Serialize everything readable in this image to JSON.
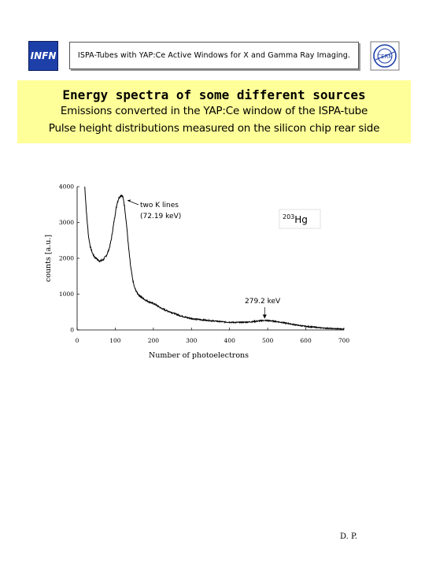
{
  "header": {
    "left_logo_text": "INFN",
    "title": "ISPA-Tubes with YAP:Ce Active Windows for X and Gamma Ray Imaging.",
    "right_logo_text": "CERN"
  },
  "banner": {
    "title": "Energy spectra of some different sources",
    "line1": "Emissions converted in the YAP:Ce window of the ISPA-tube",
    "line2": "Pulse height distributions measured on the silicon chip rear side"
  },
  "chart_data": {
    "type": "line",
    "xlabel": "Number of photoelectrons",
    "ylabel": "counts [a.u.]",
    "xlim": [
      0,
      700
    ],
    "ylim": [
      0,
      4000
    ],
    "xticks": [
      0,
      100,
      200,
      300,
      400,
      500,
      600,
      700
    ],
    "yticks": [
      0,
      1000,
      2000,
      3000,
      4000
    ],
    "grid": false,
    "source_label": {
      "sup": "203",
      "text": "Hg"
    },
    "annotations": [
      {
        "text": [
          "two K lines",
          "(72.19 keV)"
        ],
        "x": 122,
        "y": 3750
      },
      {
        "text": [
          "279.2 keV"
        ],
        "x": 492,
        "y": 230
      }
    ],
    "series": [
      {
        "x": [
          20,
          25,
          30,
          35,
          40,
          45,
          50,
          55,
          60,
          65,
          70,
          75,
          80,
          85,
          90,
          95,
          100,
          105,
          110,
          115,
          118,
          122,
          125,
          130,
          135,
          140,
          145,
          150,
          155,
          160,
          170,
          180,
          190,
          200,
          210,
          220,
          230,
          240,
          250,
          260,
          270,
          280,
          290,
          300,
          320,
          340,
          360,
          380,
          400,
          420,
          440,
          460,
          480,
          490,
          500,
          510,
          520,
          540,
          560,
          580,
          600,
          620,
          640,
          660,
          680,
          700
        ],
        "y": [
          4000,
          3200,
          2600,
          2300,
          2150,
          2050,
          2000,
          1950,
          1920,
          1940,
          1980,
          2050,
          2150,
          2300,
          2550,
          2900,
          3250,
          3550,
          3700,
          3760,
          3750,
          3620,
          3400,
          2900,
          2300,
          1800,
          1450,
          1200,
          1080,
          1000,
          900,
          830,
          780,
          740,
          680,
          610,
          560,
          520,
          480,
          440,
          400,
          370,
          340,
          320,
          290,
          270,
          250,
          230,
          215,
          210,
          215,
          230,
          255,
          265,
          262,
          252,
          240,
          205,
          170,
          130,
          100,
          80,
          60,
          45,
          35,
          25
        ]
      }
    ]
  }
}
